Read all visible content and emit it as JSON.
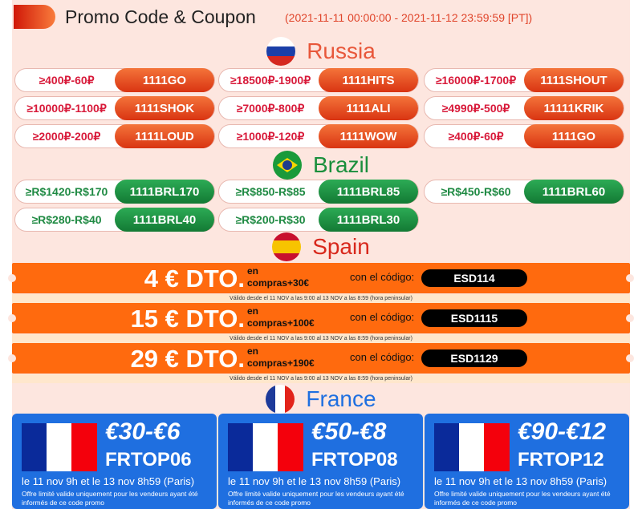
{
  "header": {
    "title": "Promo Code & Coupon",
    "period": "(2021-11-11 00:00:00 - 2021-11-12 23:59:59 [PT])"
  },
  "colors": {
    "russia": "#e8573a",
    "brazil": "#1a8f3c",
    "spain": "#d8281c",
    "france": "#1f6fe0",
    "spain_band": "#ff6a0e"
  },
  "russia": {
    "name": "Russia",
    "coupons": [
      {
        "threshold": "≥400₽-60₽",
        "code": "1111GO"
      },
      {
        "threshold": "≥18500₽-1900₽",
        "code": "1111HITS"
      },
      {
        "threshold": "≥16000₽-1700₽",
        "code": "1111SHOUT"
      },
      {
        "threshold": "≥10000₽-1100₽",
        "code": "1111SHOK"
      },
      {
        "threshold": "≥7000₽-800₽",
        "code": "1111ALI"
      },
      {
        "threshold": "≥4990₽-500₽",
        "code": "11111KRIK"
      },
      {
        "threshold": "≥2000₽-200₽",
        "code": "1111LOUD"
      },
      {
        "threshold": "≥1000₽-120₽",
        "code": "1111WOW"
      },
      {
        "threshold": "≥400₽-60₽",
        "code": "1111GO"
      }
    ]
  },
  "brazil": {
    "name": "Brazil",
    "coupons": [
      {
        "threshold": "≥R$1420-R$170",
        "code": "1111BRL170"
      },
      {
        "threshold": "≥R$850-R$85",
        "code": "1111BRL85"
      },
      {
        "threshold": "≥R$450-R$60",
        "code": "1111BRL60"
      },
      {
        "threshold": "≥R$280-R$40",
        "code": "1111BRL40"
      },
      {
        "threshold": "≥R$200-R$30",
        "code": "1111BRL30"
      }
    ]
  },
  "spain": {
    "name": "Spain",
    "coupons": [
      {
        "discount": "4 € DTO.",
        "en": "en",
        "min": "compras+30€",
        "label": "con el código:",
        "code": "ESD114",
        "valid": "Válido desde el 11 NOV a las 9:00 al 13 NOV a las 8:59 (hora peninsular)"
      },
      {
        "discount": "15 € DTO.",
        "en": "en",
        "min": "compras+100€",
        "label": "con el código:",
        "code": "ESD1115",
        "valid": "Válido desde el 11 NOV a las 9:00 al 13 NOV a las 8:59 (hora peninsular)"
      },
      {
        "discount": "29 € DTO.",
        "en": "en",
        "min": "compras+190€",
        "label": "con el código:",
        "code": "ESD1129",
        "valid": "Válido desde el 11 NOV a las 9:00 al 13 NOV a las 8:59 (hora peninsular)"
      }
    ]
  },
  "france": {
    "name": "France",
    "coupons": [
      {
        "amount": "€30-€6",
        "code": "FRTOP06",
        "dates": "le 11 nov 9h et le 13 nov 8h59 (Paris)",
        "offer": "Offre limité valide uniquement pour les vendeurs ayant été informés de ce code promo"
      },
      {
        "amount": "€50-€8",
        "code": "FRTOP08",
        "dates": "le 11 nov 9h et le 13 nov 8h59 (Paris)",
        "offer": "Offre limité valide uniquement pour les vendeurs ayant été informés de ce code promo"
      },
      {
        "amount": "€90-€12",
        "code": "FRTOP12",
        "dates": "le 11 nov 9h et le 13 nov 8h59 (Paris)",
        "offer": "Offre limité valide uniquement pour les vendeurs ayant été informés de ce code promo"
      }
    ]
  }
}
